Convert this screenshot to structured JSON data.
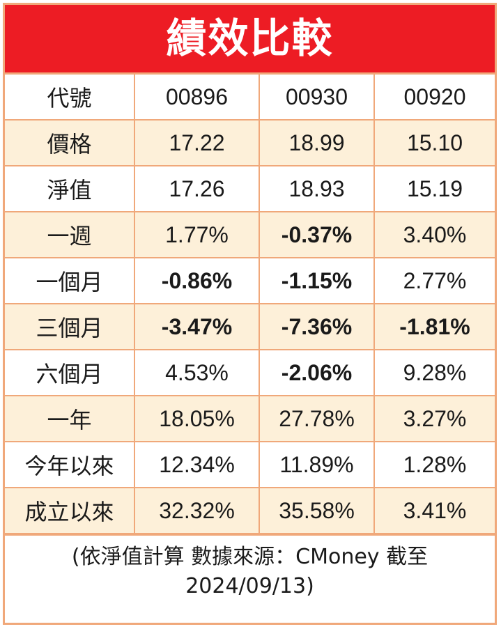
{
  "title": "績效比較",
  "header": {
    "label": "代號",
    "codes": [
      "00896",
      "00930",
      "00920"
    ]
  },
  "rows": [
    {
      "label": "價格",
      "values": [
        "17.22",
        "18.99",
        "15.10"
      ]
    },
    {
      "label": "淨值",
      "values": [
        "17.26",
        "18.93",
        "15.19"
      ]
    },
    {
      "label": "一週",
      "values": [
        "1.77%",
        "-0.37%",
        "3.40%"
      ]
    },
    {
      "label": "一個月",
      "values": [
        "-0.86%",
        "-1.15%",
        "2.77%"
      ]
    },
    {
      "label": "三個月",
      "values": [
        "-3.47%",
        "-7.36%",
        "-1.81%"
      ]
    },
    {
      "label": "六個月",
      "values": [
        "4.53%",
        "-2.06%",
        "9.28%"
      ]
    },
    {
      "label": "一年",
      "values": [
        "18.05%",
        "27.78%",
        "3.27%"
      ]
    },
    {
      "label": "今年以來",
      "values": [
        "12.34%",
        "11.89%",
        "1.28%"
      ]
    },
    {
      "label": "成立以來",
      "values": [
        "32.32%",
        "35.58%",
        "3.41%"
      ]
    }
  ],
  "note": {
    "line1": "(依淨值計算 數據來源：CMoney 截至",
    "line2": "2024/09/13)"
  },
  "colors": {
    "title_bg": "#ed1c24",
    "border": "#f0a87a",
    "shaded_row": "#fdf0d9",
    "negative_text": "#ed1c24"
  }
}
